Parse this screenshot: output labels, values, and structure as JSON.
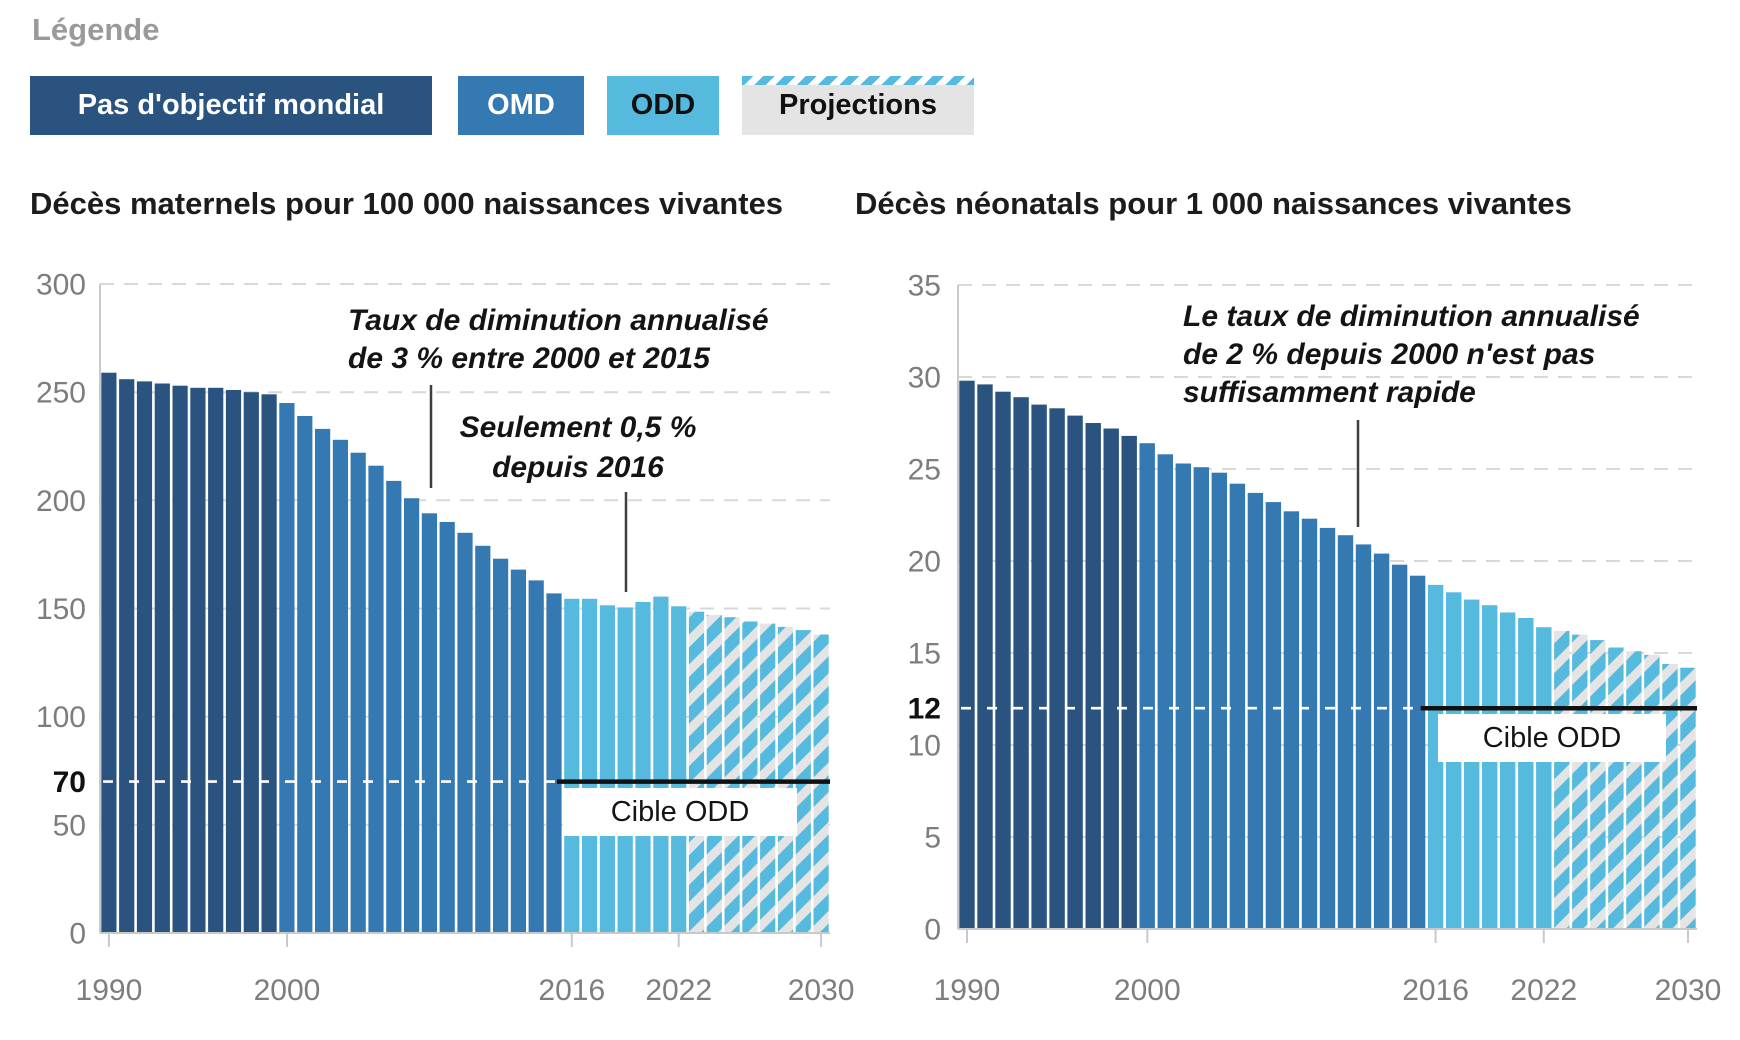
{
  "legend": {
    "title": "Légende",
    "items": [
      {
        "id": "no-global-target",
        "label": "Pas d'objectif mondial",
        "bg": "#2a547f",
        "fg": "#ffffff",
        "hatched": false
      },
      {
        "id": "omd",
        "label": "OMD",
        "bg": "#3579b2",
        "fg": "#ffffff",
        "hatched": false
      },
      {
        "id": "odd",
        "label": "ODD",
        "bg": "#56bade",
        "fg": "#111111",
        "hatched": false
      },
      {
        "id": "projections",
        "label": "Projections",
        "bg": "#e4e4e4",
        "fg": "#111111",
        "hatched": true
      }
    ]
  },
  "colors": {
    "dark": "#2a547f",
    "medium": "#3579b2",
    "light": "#56bade",
    "hatch_bg": "#e4e4e4",
    "grid": "#d8d8d8",
    "axis": "#c9c9c9",
    "tick_label": "#7d7d7d",
    "target_line": "#111111",
    "pointer": "#3f3f3f"
  },
  "chart_data": [
    {
      "type": "bar",
      "title": "Décès maternels pour 100 000 naissances vivantes",
      "ylabel": "",
      "xlabel": "",
      "ylim": [
        0,
        300
      ],
      "years": {
        "from": 1990,
        "to": 2030
      },
      "values": [
        259,
        256,
        255,
        254,
        253,
        252,
        252,
        251,
        250,
        249,
        245,
        239,
        233,
        228,
        222,
        216,
        209,
        201,
        194,
        190,
        185,
        179,
        173,
        168,
        163,
        157,
        154.5,
        154.5,
        151.5,
        150.5,
        153,
        155.5,
        151,
        148.5,
        147,
        146,
        144,
        143,
        141.5,
        140,
        138
      ],
      "y_ticks": [
        {
          "v": 300,
          "grid": true
        },
        {
          "v": 250,
          "grid": true
        },
        {
          "v": 200,
          "grid": true
        },
        {
          "v": 150,
          "grid": true
        },
        {
          "v": 100,
          "grid": true
        },
        {
          "v": 70,
          "bold": true
        },
        {
          "v": 50,
          "grid": true
        },
        {
          "v": 0
        }
      ],
      "x_ticks": [
        1990,
        2000,
        2016,
        2022,
        2030
      ],
      "target": {
        "value": 70,
        "label": "Cible ODD"
      },
      "segments": [
        {
          "from": 1990,
          "to": 1999,
          "style": "dark",
          "meaning": "Pas d'objectif mondial"
        },
        {
          "from": 2000,
          "to": 2015,
          "style": "medium",
          "meaning": "OMD"
        },
        {
          "from": 2016,
          "to": 2022,
          "style": "light",
          "meaning": "ODD"
        },
        {
          "from": 2023,
          "to": 2030,
          "style": "projection",
          "meaning": "Projections"
        }
      ],
      "annotations": [
        {
          "lines": [
            "Taux de diminution annualisé",
            "de 3 % entre 2000 et 2015"
          ]
        },
        {
          "lines": [
            "Seulement 0,5 %",
            "depuis 2016"
          ]
        }
      ]
    },
    {
      "type": "bar",
      "title": "Décès néonatals pour 1 000 naissances vivantes",
      "ylabel": "",
      "xlabel": "",
      "ylim": [
        0,
        35
      ],
      "years": {
        "from": 1990,
        "to": 2030
      },
      "values": [
        29.8,
        29.6,
        29.2,
        28.9,
        28.5,
        28.3,
        27.9,
        27.5,
        27.2,
        26.8,
        26.4,
        25.8,
        25.3,
        25.1,
        24.8,
        24.2,
        23.7,
        23.2,
        22.7,
        22.3,
        21.8,
        21.4,
        20.9,
        20.4,
        19.8,
        19.2,
        18.7,
        18.3,
        17.9,
        17.6,
        17.2,
        16.9,
        16.4,
        16.2,
        16.0,
        15.7,
        15.3,
        15.1,
        14.9,
        14.4,
        14.2
      ],
      "y_ticks": [
        {
          "v": 35,
          "grid": true
        },
        {
          "v": 30,
          "grid": true
        },
        {
          "v": 25,
          "grid": true
        },
        {
          "v": 20,
          "grid": true
        },
        {
          "v": 15,
          "grid": true
        },
        {
          "v": 12,
          "bold": true
        },
        {
          "v": 10,
          "grid": true
        },
        {
          "v": 5,
          "grid": true
        },
        {
          "v": 0
        }
      ],
      "x_ticks": [
        1990,
        2000,
        2016,
        2022,
        2030
      ],
      "target": {
        "value": 12,
        "label": "Cible ODD"
      },
      "segments": [
        {
          "from": 1990,
          "to": 1999,
          "style": "dark",
          "meaning": "Pas d'objectif mondial"
        },
        {
          "from": 2000,
          "to": 2015,
          "style": "medium",
          "meaning": "OMD"
        },
        {
          "from": 2016,
          "to": 2022,
          "style": "light",
          "meaning": "ODD"
        },
        {
          "from": 2023,
          "to": 2030,
          "style": "projection",
          "meaning": "Projections"
        }
      ],
      "annotations": [
        {
          "lines": [
            "Le taux de diminution annualisé",
            "de 2 % depuis 2000 n'est pas",
            "suffisamment rapide"
          ]
        }
      ]
    }
  ]
}
